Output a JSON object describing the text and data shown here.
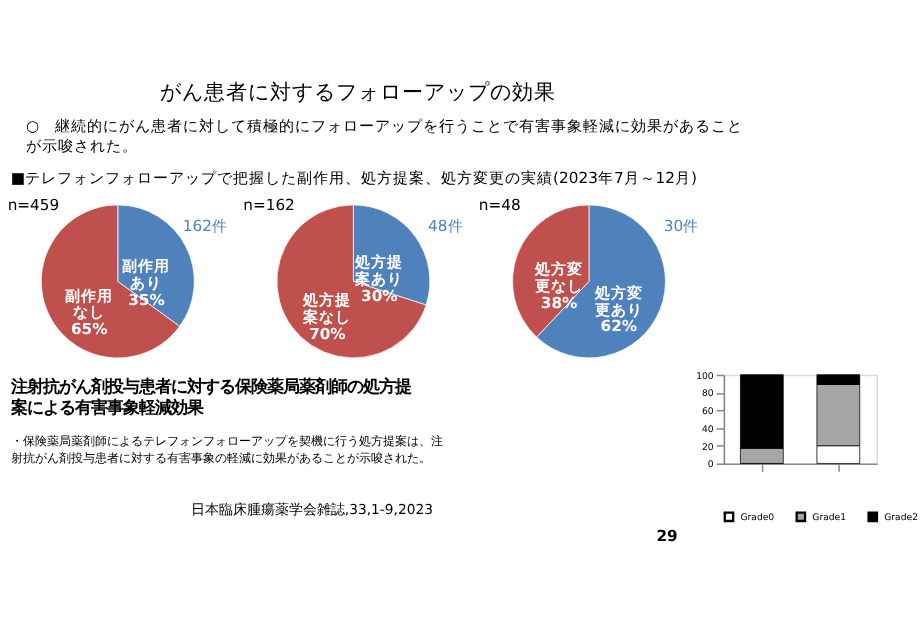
{
  "chart_data": [
    {
      "type": "other",
      "title": "がん患者に対するフォローアップの効果",
      "subtitle": "○　継続的にがん患者に対して積極的にフォローアップを行うことで有害事象軽減に効果があることが示唆された。",
      "annotations": [
        "■テレフォンフォローアップで把握した副作用、処方提案、処方変更の実績(2023年7月～12月)"
      ]
    },
    {
      "type": "pie",
      "categories": [
        "副作用あり",
        "副作用なし"
      ],
      "values": [
        35,
        65
      ],
      "value_labels": [
        "35%",
        "65%"
      ],
      "colors": [
        "#4f81bd",
        "#c0504d"
      ],
      "annotations": [
        "n=459",
        "162件"
      ]
    },
    {
      "type": "pie",
      "categories": [
        "処方提案あり",
        "処方提案なし"
      ],
      "values": [
        30,
        70
      ],
      "value_labels": [
        "30%",
        "70%"
      ],
      "colors": [
        "#4f81bd",
        "#c0504d"
      ],
      "annotations": [
        "n=162",
        "48件"
      ]
    },
    {
      "type": "pie",
      "categories": [
        "処方変更あり",
        "処方変更なし"
      ],
      "values": [
        62,
        38
      ],
      "value_labels": [
        "62%",
        "38%"
      ],
      "colors": [
        "#4f81bd",
        "#c0504d"
      ],
      "annotations": [
        "n=48",
        "30件"
      ]
    },
    {
      "type": "other",
      "title": "注射抗がん剤投与患者に対する保険薬局薬剤師の処方提案による有害事象軽減効果",
      "annotations": [
        "・保険薬局薬剤師によるテレフォンフォローアップを契機に行う処方提案は、注射抗がん剤投与患者に対する有害事象の軽減に効果があることが示唆された。",
        "日本臨床腫瘍薬学会雑誌,33,1-9,2023",
        "29"
      ]
    },
    {
      "type": "bar",
      "stacked": true,
      "categories": [
        null,
        null
      ],
      "ylim": [
        0,
        100
      ],
      "yticks": [
        0,
        20,
        40,
        60,
        80,
        100
      ],
      "legend": "bottom",
      "series": [
        {
          "name": "Grade0",
          "color": "#ffffff",
          "values": [
            0,
            20
          ]
        },
        {
          "name": "Grade1",
          "color": "#a6a6a6",
          "values": [
            17,
            69
          ]
        },
        {
          "name": "Grade2",
          "color": "#000000",
          "values": [
            83,
            11
          ]
        }
      ]
    }
  ]
}
